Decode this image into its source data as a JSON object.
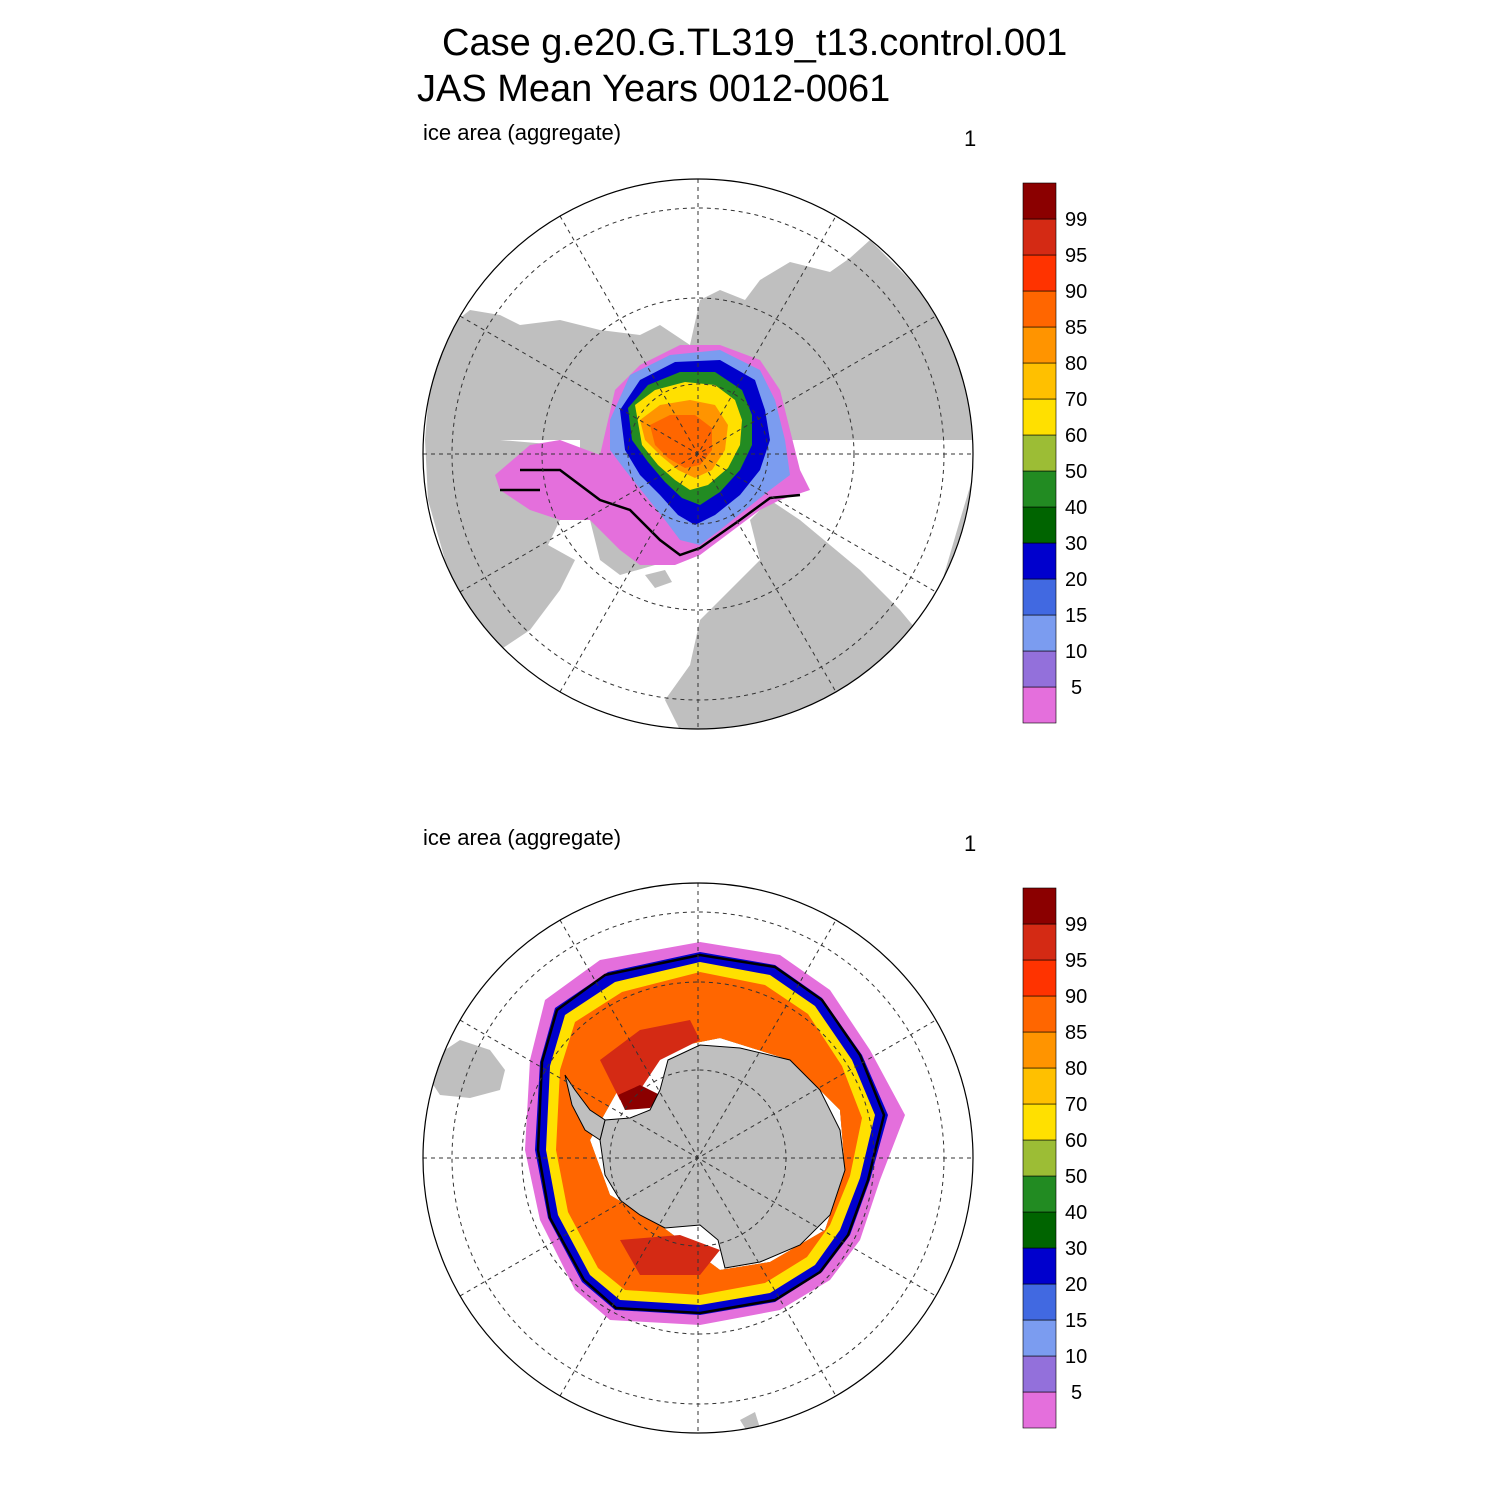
{
  "header": {
    "title_line1": "Case g.e20.G.TL319_t13.control.001",
    "title_line2": "JAS Mean   Years 0012-0061"
  },
  "panels": [
    {
      "id": "north",
      "label": "ice area  (aggregate)",
      "number": "1"
    },
    {
      "id": "south",
      "label": "ice area  (aggregate)",
      "number": "1"
    }
  ],
  "colorbar": {
    "labels": [
      "5",
      "10",
      "15",
      "20",
      "30",
      "40",
      "50",
      "60",
      "70",
      "80",
      "85",
      "90",
      "95",
      "99"
    ],
    "colors": [
      "#e46fdc",
      "#9370db",
      "#7b9cf0",
      "#4169e1",
      "#0000cd",
      "#006400",
      "#228b22",
      "#9cbd35",
      "#ffe000",
      "#ffc000",
      "#ff9400",
      "#ff6600",
      "#ff3300",
      "#d42a14",
      "#8b0000"
    ]
  },
  "map_colors": {
    "land": "#bfbfbf",
    "ocean": "#ffffff"
  }
}
